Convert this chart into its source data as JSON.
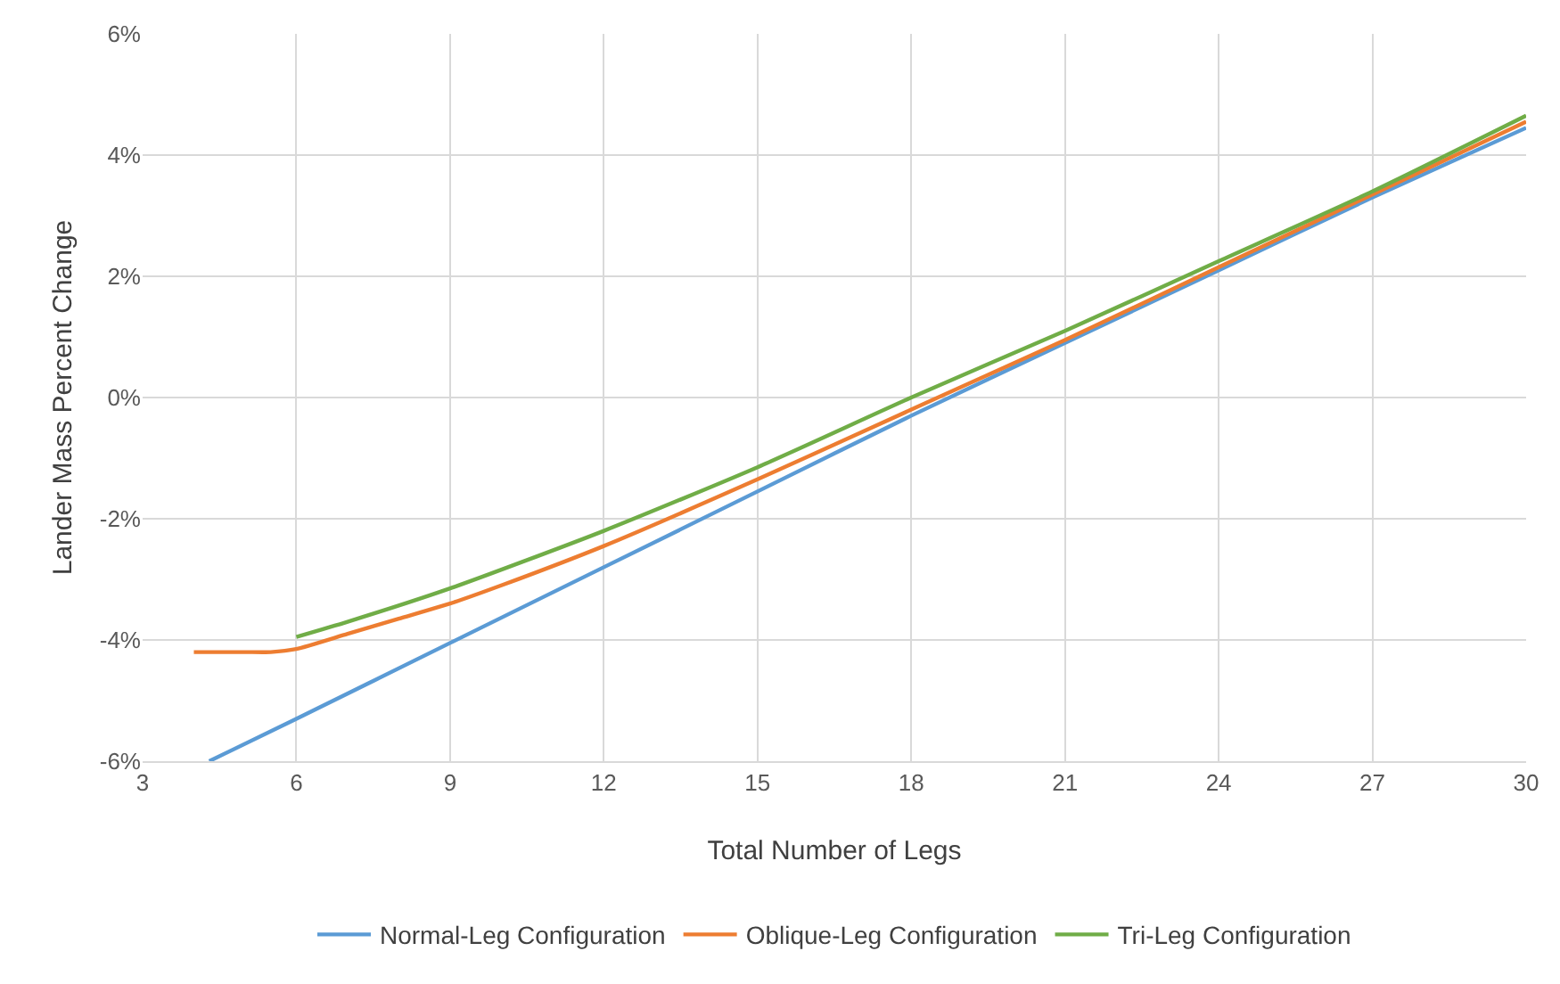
{
  "chart_data": {
    "type": "line",
    "xlabel": "Total Number of Legs",
    "ylabel": "Lander Mass Percent Change",
    "xlim": [
      3,
      30
    ],
    "xticks": [
      3,
      6,
      9,
      12,
      15,
      18,
      21,
      24,
      27,
      30
    ],
    "ylim": [
      -6,
      6
    ],
    "yticks": [
      {
        "value": -6,
        "label": "-6%"
      },
      {
        "value": -4,
        "label": "-4%"
      },
      {
        "value": -2,
        "label": "-2%"
      },
      {
        "value": 0,
        "label": "0%"
      },
      {
        "value": 2,
        "label": "2%"
      },
      {
        "value": 4,
        "label": "4%"
      },
      {
        "value": 6,
        "label": "6%"
      }
    ],
    "grid": true,
    "legend": "bottom",
    "marker": "none",
    "line_style": "solid",
    "series": [
      {
        "name": "Normal-Leg Configuration",
        "color": "#5b9bd5",
        "x": [
          4.3,
          6,
          9,
          12,
          15,
          18,
          21,
          24,
          27,
          30
        ],
        "values": [
          -6,
          -5.3,
          -4.05,
          -2.8,
          -1.55,
          -0.3,
          0.9,
          2.1,
          3.3,
          4.45
        ]
      },
      {
        "name": "Oblique-Leg Configuration",
        "color": "#ed7d31",
        "x": [
          4,
          5,
          5.5,
          6,
          7,
          8,
          9,
          10,
          12,
          15,
          18,
          21,
          24,
          27,
          30
        ],
        "values": [
          -4.2,
          -4.2,
          -4.2,
          -4.15,
          -3.9,
          -3.65,
          -3.4,
          -3.1,
          -2.45,
          -1.35,
          -0.2,
          0.95,
          2.15,
          3.35,
          4.55
        ]
      },
      {
        "name": "Tri-Leg Configuration",
        "color": "#70ad47",
        "x": [
          6,
          7,
          9,
          12,
          15,
          18,
          21,
          24,
          27,
          30
        ],
        "values": [
          -3.95,
          -3.7,
          -3.15,
          -2.2,
          -1.15,
          0,
          1.1,
          2.25,
          3.4,
          4.65
        ]
      }
    ]
  }
}
